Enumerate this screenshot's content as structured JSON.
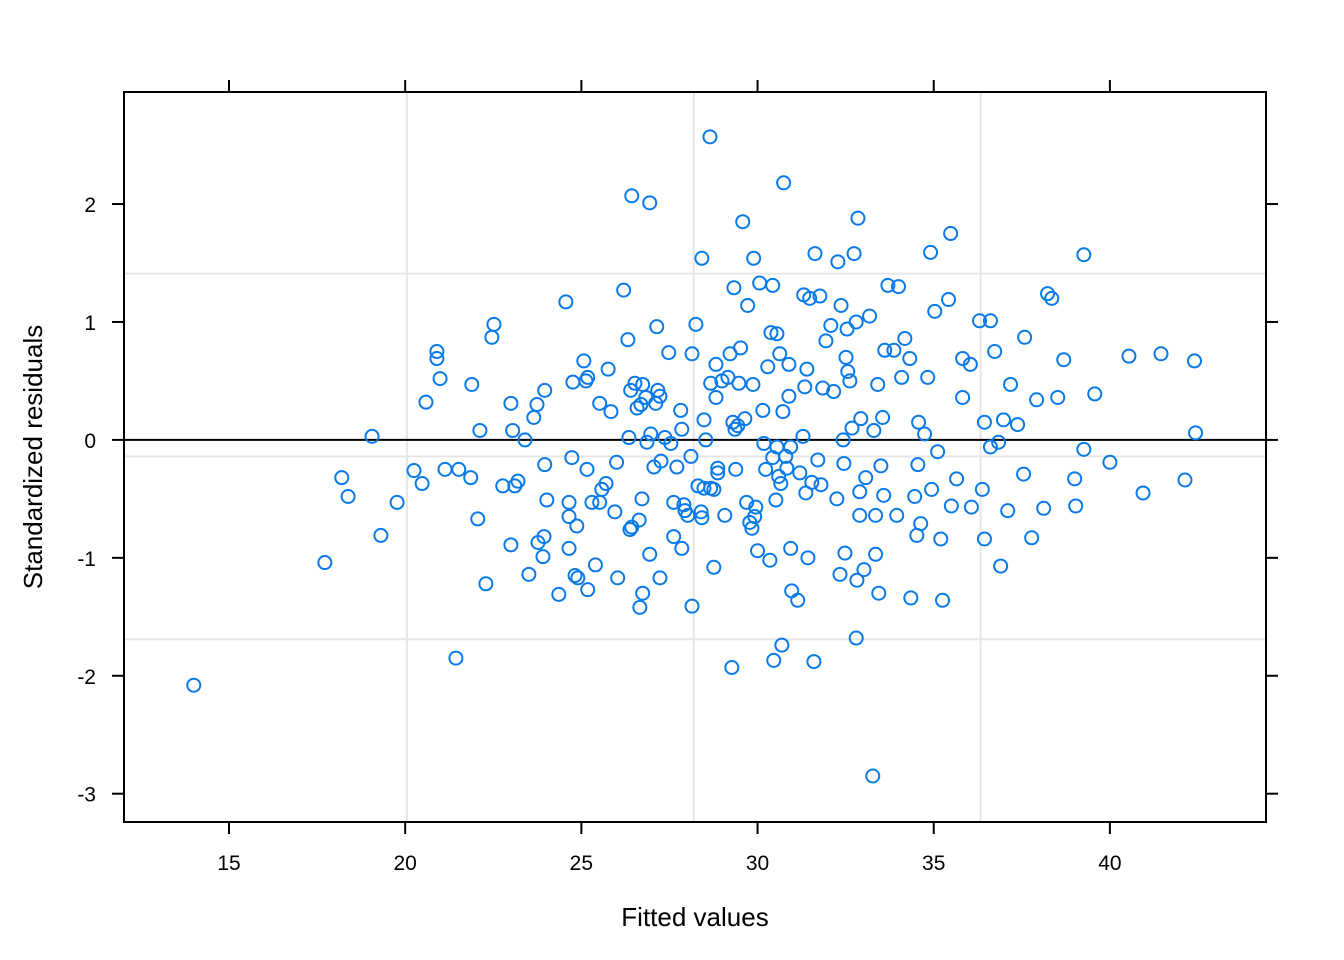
{
  "chart_data": {
    "type": "scatter",
    "xlabel": "Fitted values",
    "ylabel": "Standardized residuals",
    "color": "#0A7AE8",
    "xlim": [
      12.02,
      44.43
    ],
    "ylim": [
      -3.24,
      2.95
    ],
    "xticks": [
      15,
      20,
      25,
      30,
      35,
      40
    ],
    "yticks": [
      -3,
      -2,
      -1,
      0,
      1,
      2
    ],
    "grid": true,
    "xgrid": [
      20.05,
      28.19,
      36.33
    ],
    "ygrid": [
      1.41,
      -0.14,
      -1.69
    ],
    "hline": 0,
    "x": [
      14.0,
      17.72,
      18.2,
      18.38,
      19.06,
      19.31,
      19.77,
      20.25,
      20.48,
      20.59,
      20.9,
      20.9,
      20.99,
      21.13,
      21.44,
      21.52,
      21.86,
      21.89,
      22.06,
      22.12,
      22.29,
      22.46,
      22.52,
      22.77,
      23.0,
      23.0,
      23.05,
      23.11,
      23.2,
      23.4,
      23.51,
      23.65,
      23.74,
      23.77,
      23.91,
      23.94,
      23.96,
      23.96,
      24.02,
      24.36,
      24.56,
      24.65,
      24.65,
      24.65,
      24.73,
      24.76,
      24.82,
      24.87,
      24.9,
      25.07,
      25.13,
      25.16,
      25.18,
      25.18,
      25.3,
      25.4,
      25.52,
      25.52,
      25.58,
      25.7,
      25.76,
      25.84,
      25.95,
      26.0,
      26.03,
      26.2,
      26.32,
      26.35,
      26.38,
      26.4,
      26.43,
      26.43,
      26.52,
      26.58,
      26.64,
      26.66,
      26.69,
      26.72,
      26.74,
      26.74,
      26.83,
      26.86,
      26.94,
      26.94,
      26.97,
      27.06,
      27.11,
      27.14,
      27.17,
      27.23,
      27.23,
      27.26,
      27.37,
      27.48,
      27.54,
      27.62,
      27.62,
      27.71,
      27.82,
      27.85,
      27.85,
      27.91,
      27.94,
      28.02,
      28.11,
      28.14,
      28.14,
      28.25,
      28.31,
      28.4,
      28.42,
      28.42,
      28.48,
      28.48,
      28.53,
      28.65,
      28.67,
      28.67,
      28.76,
      28.76,
      28.82,
      28.82,
      28.87,
      28.87,
      28.99,
      29.07,
      29.16,
      29.22,
      29.27,
      29.3,
      29.33,
      29.36,
      29.38,
      29.44,
      29.47,
      29.52,
      29.58,
      29.64,
      29.69,
      29.72,
      29.78,
      29.84,
      29.87,
      29.89,
      29.92,
      29.95,
      30.0,
      30.06,
      30.15,
      30.18,
      30.23,
      30.29,
      30.35,
      30.38,
      30.43,
      30.43,
      30.46,
      30.52,
      30.55,
      30.55,
      30.6,
      30.63,
      30.66,
      30.69,
      30.72,
      30.74,
      30.8,
      30.83,
      30.89,
      30.89,
      30.94,
      30.94,
      30.97,
      31.14,
      31.2,
      31.29,
      31.31,
      31.34,
      31.37,
      31.4,
      31.43,
      31.48,
      31.54,
      31.6,
      31.63,
      31.71,
      31.77,
      31.8,
      31.85,
      31.94,
      32.08,
      32.16,
      32.25,
      32.28,
      32.34,
      32.37,
      32.43,
      32.45,
      32.48,
      32.51,
      32.54,
      32.56,
      32.62,
      32.68,
      32.74,
      32.8,
      32.8,
      32.82,
      32.85,
      32.9,
      32.9,
      32.93,
      33.02,
      33.07,
      33.18,
      33.27,
      33.3,
      33.35,
      33.35,
      33.41,
      33.44,
      33.5,
      33.55,
      33.58,
      33.61,
      33.7,
      33.87,
      33.95,
      34.0,
      34.09,
      34.18,
      34.32,
      34.35,
      34.46,
      34.52,
      34.55,
      34.57,
      34.63,
      34.74,
      34.83,
      34.91,
      34.94,
      35.03,
      35.11,
      35.2,
      35.25,
      35.42,
      35.48,
      35.5,
      35.65,
      35.82,
      35.82,
      36.04,
      36.07,
      36.3,
      36.38,
      36.44,
      36.44,
      36.61,
      36.61,
      36.73,
      36.84,
      36.9,
      36.98,
      37.1,
      37.18,
      37.38,
      37.55,
      37.58,
      37.78,
      37.92,
      38.12,
      38.23,
      38.35,
      38.52,
      38.69,
      39.0,
      39.03,
      39.26,
      39.26,
      39.57,
      40.0,
      40.54,
      40.94,
      41.45,
      42.13,
      42.4,
      42.43
    ],
    "values": [
      -2.08,
      -1.04,
      -0.32,
      -0.48,
      0.03,
      -0.81,
      -0.53,
      -0.26,
      -0.37,
      0.32,
      0.75,
      0.69,
      0.52,
      -0.25,
      -1.85,
      -0.25,
      -0.32,
      0.47,
      -0.67,
      0.08,
      -1.22,
      0.87,
      0.98,
      -0.39,
      -0.89,
      0.31,
      0.08,
      -0.39,
      -0.35,
      0.0,
      -1.14,
      0.19,
      0.3,
      -0.87,
      -0.99,
      -0.82,
      0.42,
      -0.21,
      -0.51,
      -1.31,
      1.17,
      -0.53,
      -0.65,
      -0.92,
      -0.15,
      0.49,
      -1.15,
      -0.73,
      -1.17,
      0.67,
      0.5,
      -0.25,
      0.53,
      -1.27,
      -0.53,
      -1.06,
      0.31,
      -0.53,
      -0.42,
      -0.37,
      0.6,
      0.24,
      -0.61,
      -0.19,
      -1.17,
      1.27,
      0.85,
      0.02,
      -0.76,
      0.42,
      2.07,
      -0.74,
      0.48,
      0.27,
      -0.68,
      -1.42,
      0.3,
      -0.5,
      -1.3,
      0.47,
      0.36,
      -0.02,
      2.01,
      -0.97,
      0.05,
      -0.23,
      0.31,
      0.96,
      0.42,
      0.37,
      -1.17,
      -0.18,
      0.02,
      0.74,
      -0.03,
      -0.82,
      -0.53,
      -0.23,
      0.25,
      0.09,
      -0.92,
      -0.55,
      -0.6,
      -0.64,
      -0.14,
      0.73,
      -1.41,
      0.98,
      -0.39,
      -0.61,
      1.54,
      -0.66,
      -0.41,
      0.17,
      0.0,
      2.57,
      -0.41,
      0.48,
      -0.42,
      -1.08,
      0.36,
      0.64,
      -0.28,
      -0.24,
      0.5,
      -0.64,
      0.53,
      0.73,
      -1.93,
      0.15,
      1.29,
      0.09,
      -0.25,
      0.12,
      0.48,
      0.78,
      1.85,
      0.18,
      -0.53,
      1.14,
      -0.7,
      -0.75,
      0.47,
      1.54,
      -0.65,
      -0.57,
      -0.94,
      1.33,
      0.25,
      -0.03,
      -0.25,
      0.62,
      -1.02,
      0.91,
      1.31,
      -0.15,
      -1.87,
      -0.51,
      0.9,
      -0.06,
      -0.31,
      0.73,
      -0.37,
      -1.74,
      0.24,
      2.18,
      -0.14,
      -0.24,
      0.37,
      0.64,
      -0.06,
      -0.92,
      -1.28,
      -1.36,
      -0.28,
      0.03,
      1.23,
      0.45,
      -0.45,
      0.6,
      -1.0,
      1.2,
      -0.36,
      -1.88,
      1.58,
      -0.17,
      1.22,
      -0.38,
      0.44,
      0.84,
      0.97,
      0.41,
      -0.5,
      1.51,
      -1.14,
      1.14,
      0.0,
      -0.2,
      -0.96,
      0.7,
      0.94,
      0.58,
      0.5,
      0.1,
      1.58,
      -1.68,
      1.0,
      -1.19,
      1.88,
      -0.44,
      -0.64,
      0.18,
      -1.1,
      -0.32,
      1.05,
      -2.85,
      0.08,
      -0.97,
      -0.64,
      0.47,
      -1.3,
      -0.22,
      0.19,
      -0.47,
      0.76,
      1.31,
      0.76,
      -0.64,
      1.3,
      0.53,
      0.86,
      0.69,
      -1.34,
      -0.48,
      -0.81,
      -0.21,
      0.15,
      -0.71,
      0.05,
      0.53,
      1.59,
      -0.42,
      1.09,
      -0.1,
      -0.84,
      -1.36,
      1.19,
      1.75,
      -0.56,
      -0.33,
      0.69,
      0.36,
      0.64,
      -0.57,
      1.01,
      -0.42,
      0.15,
      -0.84,
      1.01,
      -0.06,
      0.75,
      -0.02,
      -1.07,
      0.17,
      -0.6,
      0.47,
      0.13,
      -0.29,
      0.87,
      -0.83,
      0.34,
      -0.58,
      1.24,
      1.2,
      0.36,
      0.68,
      -0.33,
      -0.56,
      1.57,
      -0.08,
      0.39,
      -0.19,
      0.71,
      -0.45,
      0.73,
      -0.34,
      0.67,
      0.06
    ]
  }
}
